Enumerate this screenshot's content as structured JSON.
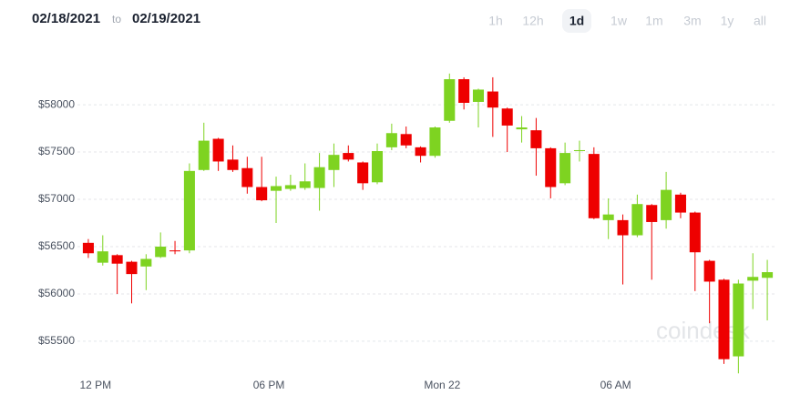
{
  "date_range": {
    "from": "02/18/2021",
    "connector": "to",
    "to": "02/19/2021"
  },
  "range_buttons": [
    "1h",
    "12h",
    "1d",
    "1w",
    "1m",
    "3m",
    "1y",
    "all"
  ],
  "selected_range": 2,
  "chart_data": {
    "type": "candlestick",
    "watermark": "coindesk",
    "categories": [
      null,
      "12 PM",
      null,
      null,
      null,
      null,
      null,
      null,
      null,
      null,
      null,
      null,
      null,
      "06 PM",
      null,
      null,
      null,
      null,
      null,
      null,
      null,
      null,
      null,
      null,
      null,
      "Mon 22",
      null,
      null,
      null,
      null,
      null,
      null,
      null,
      null,
      null,
      null,
      null,
      "06 AM",
      null,
      null,
      null,
      null,
      null,
      null,
      null,
      null,
      null,
      null
    ],
    "open": [
      56540,
      56330,
      56410,
      56340,
      56290,
      56390,
      56460,
      56460,
      57310,
      57640,
      57420,
      57330,
      57130,
      57090,
      57110,
      57120,
      57120,
      57310,
      57490,
      57390,
      57180,
      57550,
      57690,
      57550,
      57460,
      57830,
      58270,
      58030,
      58140,
      57960,
      57740,
      57730,
      57540,
      57170,
      57510,
      57480,
      56780,
      56780,
      56620,
      56940,
      56780,
      57050,
      56860,
      56350,
      56150,
      55340,
      56140,
      56170
    ],
    "high": [
      56580,
      56620,
      56420,
      56350,
      56420,
      56650,
      56560,
      57380,
      57810,
      57650,
      57570,
      57450,
      57450,
      57240,
      57260,
      57380,
      57490,
      57590,
      57570,
      57400,
      57590,
      57800,
      57770,
      57560,
      57770,
      58330,
      58290,
      58170,
      58290,
      57970,
      57880,
      57860,
      57550,
      57600,
      57620,
      57550,
      57010,
      56840,
      57050,
      56950,
      57290,
      57070,
      56870,
      56360,
      56160,
      56150,
      56430,
      56360
    ],
    "low": [
      56380,
      56300,
      56000,
      55900,
      56040,
      56380,
      56420,
      56430,
      57300,
      57300,
      57290,
      57060,
      56980,
      56750,
      57090,
      57100,
      56880,
      57130,
      57400,
      57100,
      57160,
      57520,
      57540,
      57390,
      57440,
      57810,
      57950,
      57760,
      57660,
      57500,
      57600,
      57250,
      57010,
      57150,
      57400,
      56790,
      56580,
      56100,
      56600,
      56150,
      56690,
      56800,
      56030,
      55690,
      55260,
      55160,
      55840,
      55720
    ],
    "close": [
      56430,
      56450,
      56320,
      56210,
      56370,
      56500,
      56450,
      57300,
      57620,
      57400,
      57310,
      57130,
      56990,
      57140,
      57150,
      57190,
      57340,
      57470,
      57420,
      57170,
      57510,
      57700,
      57570,
      57460,
      57760,
      58270,
      58020,
      58160,
      57970,
      57780,
      57760,
      57540,
      57130,
      57490,
      57520,
      56800,
      56840,
      56620,
      56950,
      56760,
      57100,
      56860,
      56440,
      56130,
      55310,
      56110,
      56180,
      56230
    ],
    "up_color": "#7ed321",
    "down_color": "#ee0000",
    "ylim": [
      54970,
      58530
    ],
    "yticks": [
      {
        "value": 55500,
        "label": "$55500"
      },
      {
        "value": 56000,
        "label": "$56000"
      },
      {
        "value": 56500,
        "label": "$56500"
      },
      {
        "value": 57000,
        "label": "$57000"
      },
      {
        "value": 57500,
        "label": "$57500"
      },
      {
        "value": 58000,
        "label": "$58000"
      }
    ],
    "grid": true
  }
}
